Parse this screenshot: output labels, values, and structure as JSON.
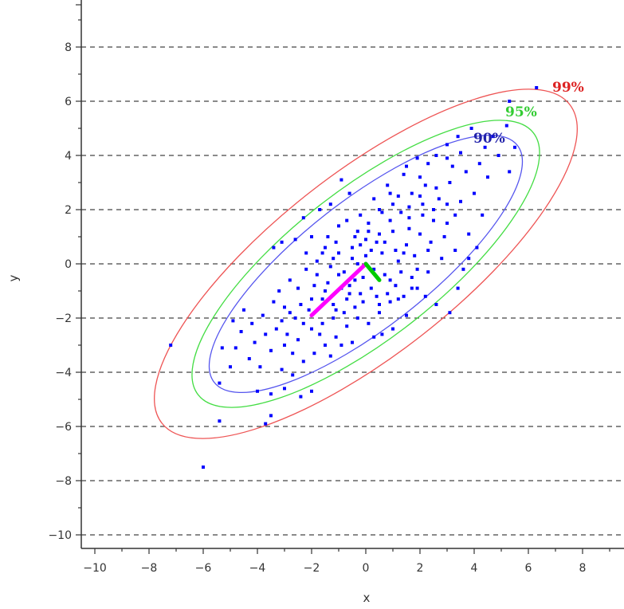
{
  "chart_data": {
    "type": "scatter",
    "xlabel": "x",
    "ylabel": "y",
    "xlim": [
      -10.5,
      9.5
    ],
    "ylim": [
      -10.5,
      9.5
    ],
    "x_ticks": [
      -10,
      -8,
      -6,
      -4,
      -2,
      0,
      2,
      4,
      6,
      8
    ],
    "y_ticks": [
      -10,
      -8,
      -6,
      -4,
      -2,
      0,
      2,
      4,
      6,
      8
    ],
    "gridlines": "horizontal-dashed",
    "point_color": "#0000ff",
    "points": [
      [
        6.3,
        6.5
      ],
      [
        5.3,
        6.0
      ],
      [
        5.2,
        5.1
      ],
      [
        5.5,
        4.3
      ],
      [
        5.3,
        3.4
      ],
      [
        4.7,
        4.7
      ],
      [
        3.9,
        5.0
      ],
      [
        3.4,
        4.7
      ],
      [
        3.0,
        4.4
      ],
      [
        2.3,
        3.7
      ],
      [
        1.9,
        3.9
      ],
      [
        1.4,
        3.3
      ],
      [
        1.2,
        2.5
      ],
      [
        0.8,
        2.9
      ],
      [
        0.5,
        2.0
      ],
      [
        0.1,
        1.5
      ],
      [
        -0.3,
        1.2
      ],
      [
        -0.6,
        2.6
      ],
      [
        -0.9,
        3.1
      ],
      [
        -1.3,
        2.2
      ],
      [
        -1.7,
        2.0
      ],
      [
        -2.3,
        1.7
      ],
      [
        -2.6,
        0.9
      ],
      [
        -3.1,
        0.8
      ],
      [
        -3.4,
        0.6
      ],
      [
        -2.0,
        1.0
      ],
      [
        -1.5,
        0.6
      ],
      [
        -1.0,
        0.4
      ],
      [
        -0.5,
        0.2
      ],
      [
        0.0,
        0.3
      ],
      [
        0.4,
        0.8
      ],
      [
        1.0,
        1.2
      ],
      [
        1.6,
        1.7
      ],
      [
        2.1,
        2.2
      ],
      [
        2.6,
        2.8
      ],
      [
        3.1,
        3.0
      ],
      [
        3.5,
        2.3
      ],
      [
        4.0,
        2.6
      ],
      [
        4.3,
        1.8
      ],
      [
        3.8,
        1.1
      ],
      [
        3.3,
        0.5
      ],
      [
        2.8,
        0.2
      ],
      [
        2.3,
        -0.3
      ],
      [
        1.7,
        -0.5
      ],
      [
        1.1,
        -0.8
      ],
      [
        0.7,
        -0.4
      ],
      [
        0.2,
        -0.9
      ],
      [
        -0.2,
        -1.1
      ],
      [
        -0.7,
        -1.3
      ],
      [
        -1.2,
        -1.5
      ],
      [
        -1.6,
        -1.3
      ],
      [
        -2.1,
        -1.7
      ],
      [
        -2.6,
        -2.0
      ],
      [
        -3.0,
        -1.6
      ],
      [
        -3.4,
        -1.4
      ],
      [
        -3.8,
        -1.9
      ],
      [
        -4.2,
        -2.2
      ],
      [
        -4.6,
        -2.5
      ],
      [
        -4.9,
        -2.1
      ],
      [
        -4.8,
        -3.1
      ],
      [
        -4.3,
        -3.5
      ],
      [
        -3.9,
        -3.8
      ],
      [
        -3.5,
        -3.2
      ],
      [
        -3.1,
        -3.9
      ],
      [
        -2.7,
        -4.1
      ],
      [
        -2.3,
        -3.6
      ],
      [
        -1.9,
        -3.3
      ],
      [
        -1.5,
        -3.0
      ],
      [
        -1.1,
        -2.7
      ],
      [
        -0.7,
        -2.3
      ],
      [
        -0.3,
        -2.0
      ],
      [
        0.1,
        -2.2
      ],
      [
        0.5,
        -1.8
      ],
      [
        0.9,
        -1.4
      ],
      [
        1.4,
        -1.2
      ],
      [
        1.9,
        -0.9
      ],
      [
        -2.0,
        -4.7
      ],
      [
        -2.4,
        -4.9
      ],
      [
        -3.0,
        -4.6
      ],
      [
        -3.5,
        -4.8
      ],
      [
        -4.0,
        -4.7
      ],
      [
        -3.5,
        -5.6
      ],
      [
        -3.7,
        -5.9
      ],
      [
        -5.3,
        -3.1
      ],
      [
        -5.4,
        -4.4
      ],
      [
        -5.4,
        -5.8
      ],
      [
        -7.2,
        -3.0
      ],
      [
        -6.0,
        -7.5
      ],
      [
        -5.0,
        -3.8
      ],
      [
        -4.5,
        -1.7
      ],
      [
        -3.2,
        -1.0
      ],
      [
        -2.8,
        -0.6
      ],
      [
        -2.2,
        -0.2
      ],
      [
        -1.8,
        0.1
      ],
      [
        -1.3,
        -0.1
      ],
      [
        -0.8,
        -0.3
      ],
      [
        -0.4,
        -0.6
      ],
      [
        0.3,
        -0.2
      ],
      [
        0.6,
        0.4
      ],
      [
        1.2,
        0.1
      ],
      [
        1.5,
        0.7
      ],
      [
        2.0,
        1.1
      ],
      [
        2.5,
        1.6
      ],
      [
        3.0,
        1.5
      ],
      [
        2.7,
        2.4
      ],
      [
        2.2,
        2.9
      ],
      [
        1.7,
        2.6
      ],
      [
        1.3,
        1.9
      ],
      [
        0.9,
        1.6
      ],
      [
        0.5,
        1.1
      ],
      [
        0.0,
        0.9
      ],
      [
        -0.5,
        0.6
      ],
      [
        -1.0,
        1.4
      ],
      [
        -1.4,
        1.0
      ],
      [
        -2.2,
        0.4
      ],
      [
        -2.5,
        -0.9
      ],
      [
        -1.9,
        -0.8
      ],
      [
        -1.4,
        -0.7
      ],
      [
        -0.9,
        -0.9
      ],
      [
        -0.1,
        -1.4
      ],
      [
        0.4,
        -1.2
      ],
      [
        0.9,
        -0.6
      ],
      [
        1.3,
        -0.3
      ],
      [
        1.8,
        0.3
      ],
      [
        2.4,
        0.8
      ],
      [
        2.9,
        1.0
      ],
      [
        3.3,
        1.8
      ],
      [
        3.7,
        3.4
      ],
      [
        4.2,
        3.7
      ],
      [
        4.5,
        3.2
      ],
      [
        4.9,
        4.0
      ],
      [
        3.2,
        3.6
      ],
      [
        2.0,
        3.2
      ],
      [
        1.0,
        2.2
      ],
      [
        0.3,
        2.4
      ],
      [
        -0.2,
        1.8
      ],
      [
        -0.7,
        1.6
      ],
      [
        -1.1,
        0.8
      ],
      [
        -1.6,
        0.4
      ],
      [
        -2.9,
        -2.6
      ],
      [
        -2.5,
        -2.8
      ],
      [
        -2.0,
        -2.4
      ],
      [
        -1.6,
        -2.2
      ],
      [
        -1.2,
        -2.0
      ],
      [
        -0.8,
        -1.8
      ],
      [
        -0.4,
        -1.6
      ],
      [
        0.6,
        -2.6
      ],
      [
        1.0,
        -2.4
      ],
      [
        1.5,
        -1.9
      ],
      [
        1.2,
        -1.3
      ],
      [
        2.2,
        -1.2
      ],
      [
        2.6,
        -1.5
      ],
      [
        3.1,
        -1.8
      ],
      [
        3.4,
        -0.9
      ],
      [
        3.8,
        0.2
      ],
      [
        4.1,
        0.6
      ],
      [
        3.6,
        -0.2
      ],
      [
        -3.3,
        -2.4
      ],
      [
        -3.7,
        -2.6
      ],
      [
        -4.1,
        -2.9
      ],
      [
        -2.7,
        -3.3
      ],
      [
        -3.0,
        -3.0
      ],
      [
        -1.7,
        -2.6
      ],
      [
        -1.3,
        -3.4
      ],
      [
        -0.9,
        -3.0
      ],
      [
        -0.5,
        -2.9
      ],
      [
        0.3,
        -2.7
      ],
      [
        -0.1,
        -0.5
      ],
      [
        0.2,
        0.5
      ],
      [
        0.7,
        0.8
      ],
      [
        1.1,
        0.5
      ],
      [
        1.6,
        1.3
      ],
      [
        2.1,
        1.8
      ],
      [
        2.5,
        2.0
      ],
      [
        3.0,
        2.2
      ],
      [
        0.8,
        -1.1
      ],
      [
        -0.3,
        0.0
      ],
      [
        -0.6,
        -0.8
      ],
      [
        -1.5,
        -1.0
      ],
      [
        -2.0,
        -1.3
      ],
      [
        -2.4,
        -1.5
      ],
      [
        -2.8,
        -1.8
      ],
      [
        -3.1,
        -2.1
      ],
      [
        1.9,
        -0.2
      ],
      [
        2.3,
        0.5
      ],
      [
        -1.0,
        -0.4
      ],
      [
        0.1,
        1.2
      ],
      [
        0.9,
        2.6
      ],
      [
        1.5,
        3.6
      ],
      [
        2.6,
        4.0
      ],
      [
        3.0,
        3.9
      ],
      [
        3.5,
        4.1
      ],
      [
        4.4,
        4.3
      ],
      [
        1.4,
        0.4
      ],
      [
        -0.2,
        0.7
      ],
      [
        -1.8,
        -0.4
      ],
      [
        -2.3,
        -2.2
      ],
      [
        -1.1,
        -1.7
      ],
      [
        0.5,
        -1.5
      ],
      [
        1.7,
        -0.9
      ],
      [
        2.0,
        2.5
      ],
      [
        1.6,
        2.1
      ],
      [
        0.6,
        1.9
      ],
      [
        -0.4,
        1.0
      ],
      [
        -1.2,
        0.2
      ],
      [
        -0.6,
        -1.1
      ]
    ],
    "ellipses": [
      {
        "label": "90%",
        "color": "#5555ee",
        "label_color": "#2222aa",
        "cx": 0.0,
        "cy": 0.0,
        "a": 7.1,
        "b": 2.35,
        "angle_deg": 38
      },
      {
        "label": "95%",
        "color": "#44dd44",
        "label_color": "#33cc33",
        "cx": 0.0,
        "cy": 0.0,
        "a": 7.85,
        "b": 2.75,
        "angle_deg": 38
      },
      {
        "label": "99%",
        "color": "#ee5555",
        "label_color": "#dd2222",
        "cx": 0.0,
        "cy": 0.0,
        "a": 9.55,
        "b": 3.35,
        "angle_deg": 38
      }
    ],
    "eigenvectors": [
      {
        "color": "#ff00ff",
        "from": [
          0.0,
          0.0
        ],
        "to": [
          -2.0,
          -1.9
        ]
      },
      {
        "color": "#00cc00",
        "from": [
          0.0,
          0.0
        ],
        "to": [
          0.5,
          -0.6
        ]
      }
    ]
  }
}
